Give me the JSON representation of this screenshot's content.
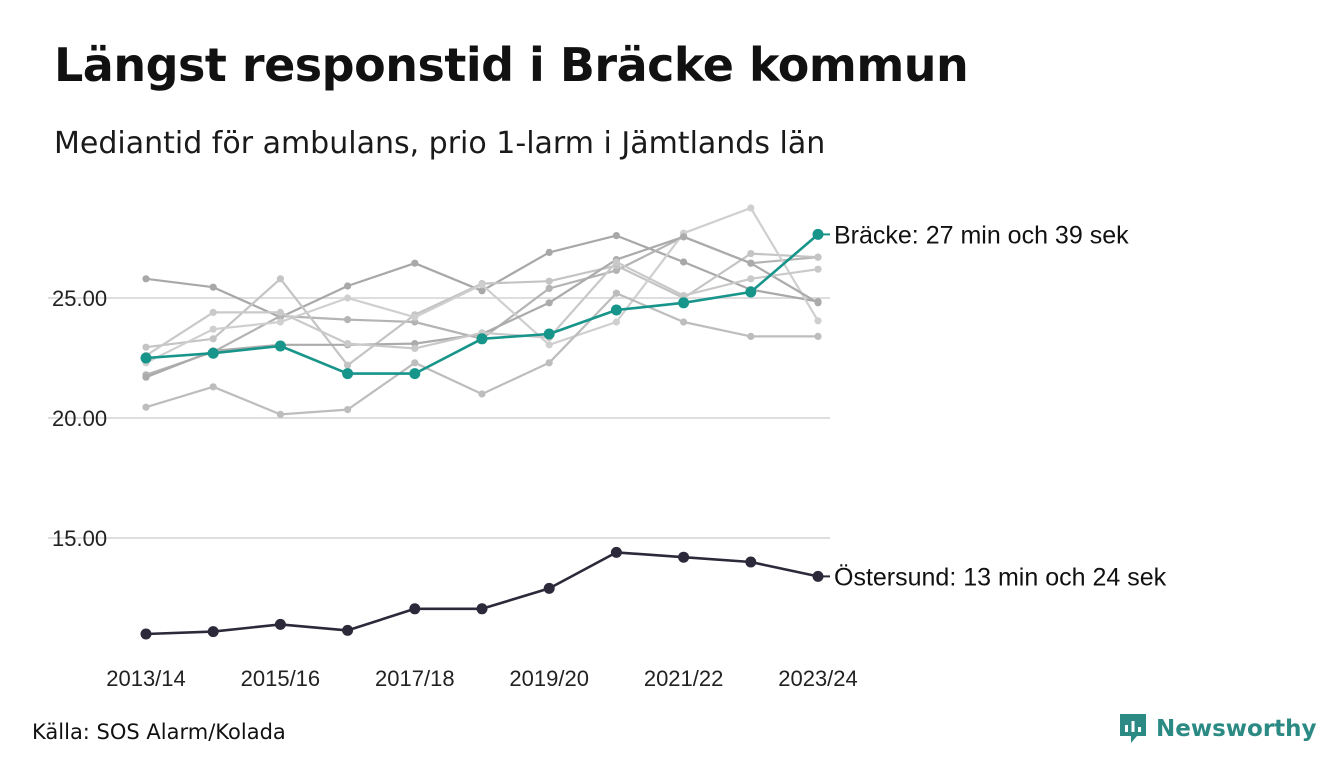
{
  "title": "Längst responstid i Bräcke kommun",
  "subtitle": "Mediantid för ambulans, prio 1-larm i Jämtlands län",
  "source": "Källa: SOS Alarm/Kolada",
  "brand": "Newsworthy",
  "colors": {
    "highlight": "#17958a",
    "dark": "#2c2a3a",
    "grey": [
      "#a8a8a8",
      "#b4b4b4",
      "#c4c4c4",
      "#cfcfcf",
      "#bdbdbd",
      "#ababab",
      "#c9c9c9"
    ],
    "brand": "#2b8a83"
  },
  "chart_data": {
    "type": "line",
    "x": [
      "2013/14",
      "2014/15",
      "2015/16",
      "2016/17",
      "2017/18",
      "2018/19",
      "2019/20",
      "2020/21",
      "2021/22",
      "2022/23",
      "2023/24"
    ],
    "x_tick_labels": [
      "2013/14",
      "2015/16",
      "2017/18",
      "2019/20",
      "2021/22",
      "2023/24"
    ],
    "ylim": [
      10.5,
      29
    ],
    "y_ticks": [
      15,
      20,
      25
    ],
    "y_tick_labels": [
      "15.00",
      "20.00",
      "25.00"
    ],
    "grid": true,
    "series": [
      {
        "values": [
          25.8,
          25.45,
          24.2,
          25.5,
          26.45,
          25.3,
          26.9,
          27.6,
          26.5,
          25.35,
          24.85
        ],
        "style": "grey"
      },
      {
        "values": [
          21.8,
          22.75,
          24.25,
          24.1,
          24.0,
          23.3,
          25.4,
          26.15,
          27.55,
          26.45,
          26.7
        ],
        "style": "grey"
      },
      {
        "values": [
          22.95,
          23.3,
          25.8,
          22.2,
          24.3,
          25.6,
          25.7,
          26.35,
          25.0,
          26.85,
          26.7
        ],
        "style": "grey"
      },
      {
        "values": [
          22.3,
          23.7,
          24.0,
          25.0,
          24.2,
          25.55,
          23.05,
          24.0,
          27.7,
          28.75,
          24.05
        ],
        "style": "grey"
      },
      {
        "values": [
          20.45,
          21.3,
          20.15,
          20.35,
          22.3,
          21.0,
          22.3,
          25.2,
          24.0,
          23.4,
          23.4
        ],
        "style": "grey"
      },
      {
        "values": [
          21.7,
          22.8,
          23.05,
          23.05,
          23.1,
          23.5,
          24.8,
          26.6,
          27.55,
          26.45,
          24.8
        ],
        "style": "grey"
      },
      {
        "values": [
          22.6,
          24.4,
          24.4,
          23.1,
          22.9,
          23.55,
          23.35,
          26.5,
          25.1,
          25.8,
          26.2
        ],
        "style": "grey"
      },
      {
        "name": "Bräcke",
        "values": [
          22.5,
          22.7,
          23.0,
          21.85,
          21.85,
          23.3,
          23.5,
          24.5,
          24.8,
          25.25,
          27.65
        ],
        "style": "highlight",
        "label": "Bräcke: 27 min och 39 sek"
      },
      {
        "name": "Östersund",
        "values": [
          11.0,
          11.1,
          11.4,
          11.15,
          12.05,
          12.05,
          12.9,
          14.4,
          14.2,
          14.0,
          13.4
        ],
        "style": "dark",
        "label": "Östersund: 13 min och 24 sek"
      }
    ]
  }
}
